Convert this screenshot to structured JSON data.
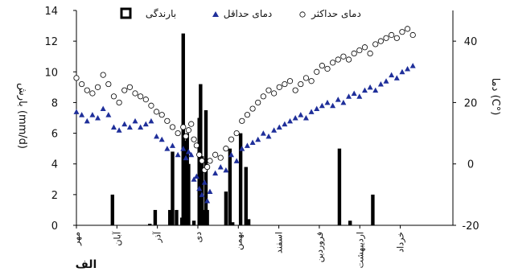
{
  "chart_data": {
    "type": "bar+scatter",
    "panel_label": "الف",
    "left_axis": {
      "label": "بارش (mm/d)",
      "ylim": [
        0,
        14
      ],
      "ticks": [
        0,
        2,
        4,
        6,
        8,
        10,
        12,
        14
      ]
    },
    "right_axis": {
      "label": "دما (C°)",
      "ylim": [
        -20,
        50
      ],
      "ticks": [
        -20,
        0,
        20,
        40
      ]
    },
    "x_axis": {
      "range": [
        0,
        282
      ],
      "months": [
        "مهر",
        "آبان",
        "آذر",
        "دی",
        "بهمن",
        "اسفند",
        "فروردین",
        "اردیبهشت",
        "خرداد"
      ]
    },
    "legend": {
      "placement": "top",
      "precip": "بارندگی",
      "tmin": "دمای حداقل",
      "tmax": "دمای حداکثر"
    },
    "series": [
      {
        "name": "بارندگی",
        "kind": "bar",
        "axis": "left",
        "x": [
          27,
          55,
          59,
          70,
          72,
          75,
          79,
          80,
          81,
          82,
          83,
          84,
          88,
          92,
          93,
          94,
          96,
          97,
          98,
          112,
          115,
          117,
          123,
          127,
          129,
          197,
          205,
          222
        ],
        "values": [
          2.0,
          0.1,
          1.0,
          1.0,
          4.8,
          1.0,
          0.5,
          12.5,
          3.0,
          5.5,
          6.0,
          4.0,
          0.3,
          7.0,
          9.2,
          4.5,
          1.0,
          7.5,
          1.0,
          2.2,
          5.0,
          0.2,
          6.0,
          3.8,
          0.4,
          5.0,
          0.3,
          2.0
        ]
      },
      {
        "name": "دمای حداقل",
        "kind": "scatter",
        "marker": "triangle",
        "color": "#1f2f9a",
        "axis": "right",
        "x": [
          0,
          4,
          8,
          12,
          16,
          20,
          24,
          28,
          32,
          36,
          40,
          44,
          48,
          52,
          56,
          60,
          64,
          68,
          72,
          76,
          80,
          82,
          84,
          86,
          88,
          90,
          92,
          94,
          96,
          98,
          100,
          104,
          108,
          112,
          116,
          120,
          124,
          128,
          132,
          136,
          140,
          144,
          148,
          152,
          156,
          160,
          164,
          168,
          172,
          176,
          180,
          184,
          188,
          192,
          196,
          200,
          204,
          208,
          212,
          216,
          220,
          224,
          228,
          232,
          236,
          240,
          244,
          248,
          252
        ],
        "values": [
          17,
          16,
          14,
          16,
          15,
          18,
          16,
          12,
          11,
          13,
          12,
          14,
          12,
          13,
          14,
          9,
          8,
          5,
          6,
          3,
          5,
          2,
          4,
          3,
          -5,
          -4,
          -8,
          -10,
          -6,
          -12,
          -9,
          -3,
          -1,
          -2,
          3,
          1,
          5,
          6,
          7,
          8,
          10,
          9,
          11,
          12,
          13,
          14,
          15,
          16,
          15,
          17,
          18,
          19,
          20,
          19,
          21,
          20,
          22,
          23,
          22,
          24,
          25,
          24,
          26,
          27,
          29,
          28,
          30,
          31,
          32
        ]
      },
      {
        "name": "دمای حداکثر",
        "kind": "scatter",
        "marker": "circle",
        "axis": "right",
        "x": [
          0,
          4,
          8,
          12,
          16,
          20,
          24,
          28,
          32,
          36,
          40,
          44,
          48,
          52,
          56,
          60,
          64,
          68,
          72,
          76,
          80,
          82,
          84,
          86,
          88,
          90,
          92,
          94,
          96,
          98,
          100,
          104,
          108,
          112,
          116,
          120,
          124,
          128,
          132,
          136,
          140,
          144,
          148,
          152,
          156,
          160,
          164,
          168,
          172,
          176,
          180,
          184,
          188,
          192,
          196,
          200,
          204,
          208,
          212,
          216,
          220,
          224,
          228,
          232,
          236,
          240,
          244,
          248,
          252
        ],
        "values": [
          28,
          26,
          24,
          23,
          25,
          29,
          26,
          22,
          20,
          24,
          25,
          23,
          22,
          21,
          19,
          17,
          16,
          14,
          12,
          10,
          12,
          9,
          11,
          13,
          8,
          6,
          3,
          1,
          -2,
          -1,
          1,
          3,
          2,
          5,
          8,
          10,
          14,
          16,
          18,
          20,
          22,
          24,
          23,
          25,
          26,
          27,
          24,
          26,
          28,
          27,
          30,
          32,
          31,
          33,
          34,
          35,
          34,
          36,
          37,
          38,
          36,
          39,
          40,
          41,
          42,
          41,
          43,
          44,
          42
        ]
      }
    ]
  }
}
